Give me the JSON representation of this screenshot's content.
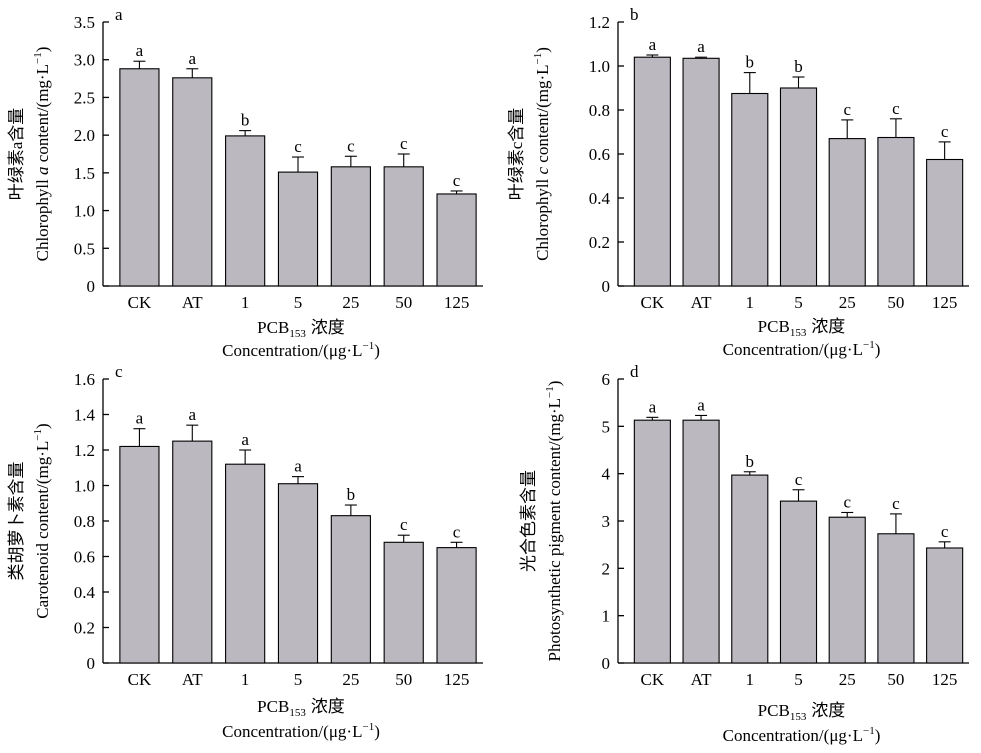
{
  "chart_data": [
    {
      "id": "a",
      "type": "bar",
      "panel_label": "a",
      "categories": [
        "CK",
        "AT",
        "1",
        "5",
        "25",
        "50",
        "125"
      ],
      "values": [
        2.88,
        2.76,
        1.99,
        1.51,
        1.58,
        1.58,
        1.22
      ],
      "errors": [
        0.1,
        0.12,
        0.07,
        0.2,
        0.14,
        0.17,
        0.04
      ],
      "significance": [
        "a",
        "a",
        "b",
        "c",
        "c",
        "c",
        "c"
      ],
      "ylim": [
        0,
        3.5
      ],
      "yticks": [
        "0",
        "0.5",
        "1.0",
        "1.5",
        "2.0",
        "2.5",
        "3.0",
        "3.5"
      ],
      "ylabel_cn": "叶绿素a含量",
      "ylabel_pre": "Chlorophyll ",
      "ylabel_it": "a",
      "ylabel_post": " content/(mg·L",
      "ylabel_exp": "−1",
      "ylabel_close": ")",
      "xlabel_pcb": "PCB",
      "xlabel_sub": "153",
      "xlabel_cn": "浓度",
      "xlabel_conc": "Concentration/(μg·L",
      "xlabel_exp": "−1",
      "xlabel_close": ")"
    },
    {
      "id": "b",
      "type": "bar",
      "panel_label": "b",
      "categories": [
        "CK",
        "AT",
        "1",
        "5",
        "25",
        "50",
        "125"
      ],
      "values": [
        1.04,
        1.035,
        0.875,
        0.9,
        0.67,
        0.675,
        0.575
      ],
      "errors": [
        0.01,
        0.005,
        0.095,
        0.05,
        0.085,
        0.085,
        0.08
      ],
      "significance": [
        "a",
        "a",
        "b",
        "b",
        "c",
        "c",
        "c"
      ],
      "ylim": [
        0,
        1.2
      ],
      "yticks": [
        "0",
        "0.2",
        "0.4",
        "0.6",
        "0.8",
        "1.0",
        "1.2"
      ],
      "ylabel_cn": "叶绿素c含量",
      "ylabel_pre": "Chlorophyll ",
      "ylabel_it": "c",
      "ylabel_post": " content/(mg·L",
      "ylabel_exp": "−1",
      "ylabel_close": ")",
      "xlabel_pcb": "PCB",
      "xlabel_sub": "153",
      "xlabel_cn": "浓度",
      "xlabel_conc": "Concentration/(μg·L",
      "xlabel_exp": "−1",
      "xlabel_close": ")"
    },
    {
      "id": "c",
      "type": "bar",
      "panel_label": "c",
      "categories": [
        "CK",
        "AT",
        "1",
        "5",
        "25",
        "50",
        "125"
      ],
      "values": [
        1.22,
        1.25,
        1.12,
        1.01,
        0.83,
        0.68,
        0.65
      ],
      "errors": [
        0.1,
        0.09,
        0.08,
        0.04,
        0.06,
        0.04,
        0.03
      ],
      "significance": [
        "a",
        "a",
        "a",
        "a",
        "b",
        "c",
        "c"
      ],
      "ylim": [
        0,
        1.6
      ],
      "yticks": [
        "0",
        "0.2",
        "0.4",
        "0.6",
        "0.8",
        "1.0",
        "1.2",
        "1.4",
        "1.6"
      ],
      "ylabel_cn": "类胡萝卜素含量",
      "ylabel_pre": "Carotenoid content/(mg·L",
      "ylabel_it": "",
      "ylabel_post": "",
      "ylabel_exp": "−1",
      "ylabel_close": ")",
      "xlabel_pcb": "PCB",
      "xlabel_sub": "153",
      "xlabel_cn": "浓度",
      "xlabel_conc": "Concentration/(μg·L",
      "xlabel_exp": "−1",
      "xlabel_close": ")"
    },
    {
      "id": "d",
      "type": "bar",
      "panel_label": "d",
      "categories": [
        "CK",
        "AT",
        "1",
        "5",
        "25",
        "50",
        "125"
      ],
      "values": [
        5.13,
        5.13,
        3.97,
        3.42,
        3.08,
        2.73,
        2.43
      ],
      "errors": [
        0.06,
        0.1,
        0.07,
        0.24,
        0.1,
        0.42,
        0.13
      ],
      "significance": [
        "a",
        "a",
        "b",
        "c",
        "c",
        "c",
        "c"
      ],
      "ylim": [
        0,
        6
      ],
      "yticks": [
        "0",
        "1",
        "2",
        "3",
        "4",
        "5",
        "6"
      ],
      "ylabel_cn": "光合色素含量",
      "ylabel_pre": "Photosynthetic pigment content/(mg·L",
      "ylabel_it": "",
      "ylabel_post": "",
      "ylabel_exp": "−1",
      "ylabel_close": ")",
      "xlabel_pcb": "PCB",
      "xlabel_sub": "153",
      "xlabel_cn": "浓度",
      "xlabel_conc": "Concentration/(μg·L",
      "xlabel_exp": "−1",
      "xlabel_close": ")"
    }
  ],
  "colors": {
    "bar_fill": "#bcb8c0",
    "bar_stroke": "#000000",
    "axis": "#000000"
  }
}
